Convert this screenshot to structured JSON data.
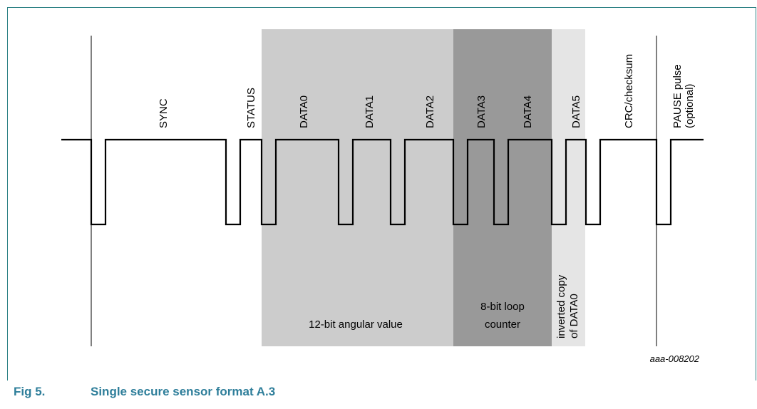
{
  "figure": {
    "number": "Fig 5.",
    "title": "Single secure sensor format A.3",
    "reference": "aaa-008202"
  },
  "colors": {
    "frame": "#2a8083",
    "caption": "#2e7e9a",
    "angular_region": "#cccccc",
    "loop_region": "#999999",
    "inverted_region": "#e5e5e5",
    "signal": "#000000"
  },
  "nibbles": {
    "sync": "SYNC",
    "status": "STATUS",
    "data0": "DATA0",
    "data1": "DATA1",
    "data2": "DATA2",
    "data3": "DATA3",
    "data4": "DATA4",
    "data5": "DATA5",
    "crc": "CRC/checksum",
    "pause_line1": "PAUSE pulse",
    "pause_line2": "(optional)"
  },
  "regions": {
    "angular": "12-bit angular value",
    "loop_line1": "8-bit loop",
    "loop_line2": "counter",
    "inverted_line1": "inverted copy",
    "inverted_line2": "of DATA0"
  }
}
